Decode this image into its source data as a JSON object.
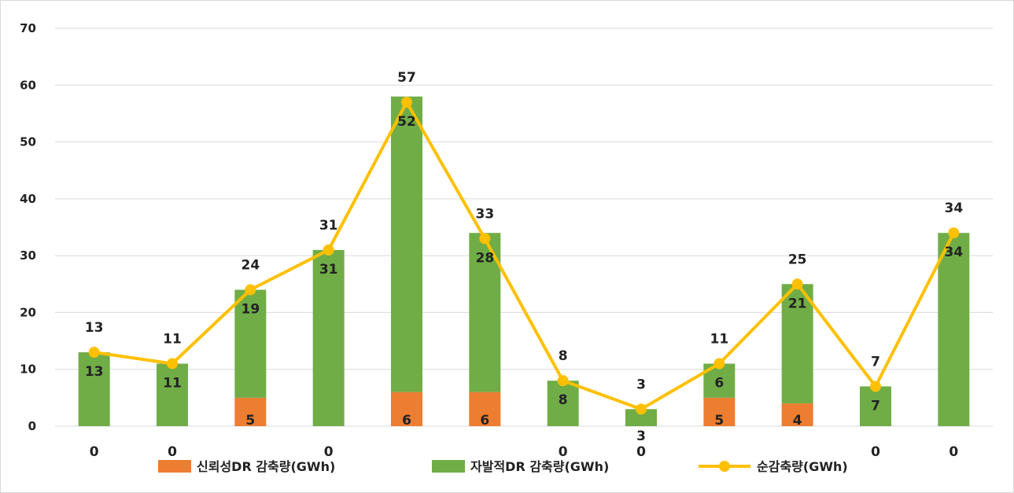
{
  "chart_data": {
    "type": "bar",
    "stacked": true,
    "ylim": [
      0,
      70
    ],
    "yticks": [
      0,
      10,
      20,
      30,
      40,
      50,
      60,
      70
    ],
    "grid": true,
    "legend_position": "bottom",
    "category_count": 12,
    "x_labels": [
      "0",
      "0",
      "",
      "0",
      "",
      "",
      "0",
      "0",
      "",
      "",
      "0",
      "0"
    ],
    "series": [
      {
        "name": "신뢰성DR 감축량(GWh)",
        "kind": "bar",
        "color": "#ED7D31",
        "values": [
          0,
          0,
          5,
          0,
          6,
          6,
          0,
          0,
          5,
          4,
          0,
          0
        ],
        "labels": [
          "",
          "",
          "5",
          "",
          "6",
          "6",
          "",
          "",
          "5",
          "4",
          "",
          ""
        ]
      },
      {
        "name": "자발적DR 감축량(GWh)",
        "kind": "bar",
        "color": "#70AD47",
        "values": [
          13,
          11,
          19,
          31,
          52,
          28,
          8,
          3,
          6,
          21,
          7,
          34
        ],
        "labels": [
          "13",
          "11",
          "19",
          "31",
          "52",
          "28",
          "8",
          "3",
          "6",
          "21",
          "7",
          "34"
        ]
      },
      {
        "name": "순감축량(GWh)",
        "kind": "line",
        "color": "#FFC000",
        "values": [
          13,
          11,
          24,
          31,
          57,
          33,
          8,
          3,
          11,
          25,
          7,
          34
        ],
        "labels": [
          "13",
          "11",
          "24",
          "31",
          "57",
          "33",
          "8",
          "3",
          "11",
          "25",
          "7",
          "34"
        ]
      }
    ]
  }
}
